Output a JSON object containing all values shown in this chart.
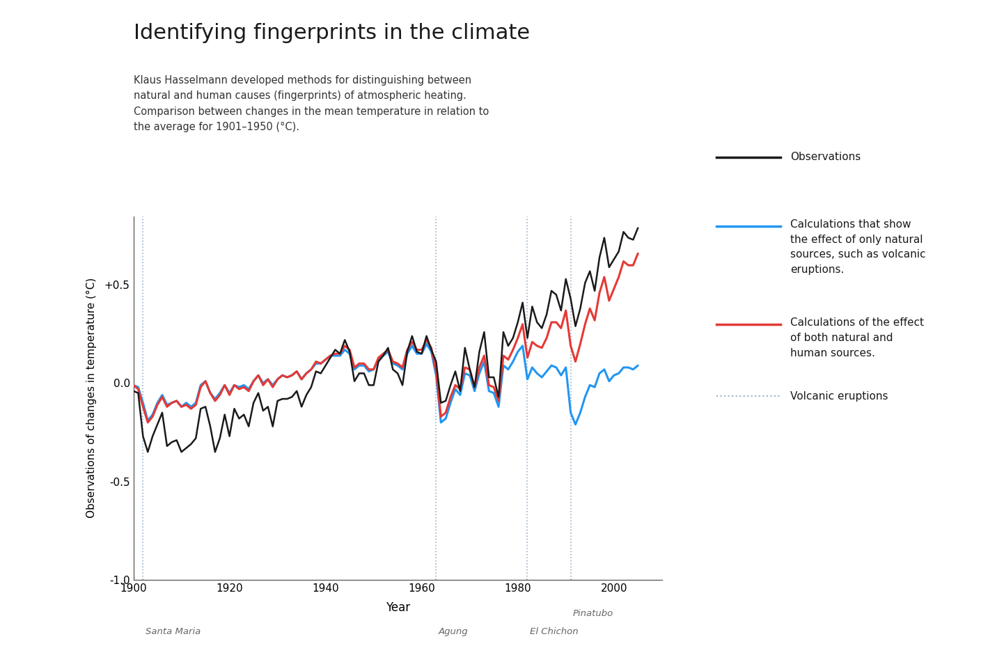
{
  "title": "Identifying fingerprints in the climate",
  "subtitle": "Klaus Hasselmann developed methods for distinguishing between\nnatural and human causes (fingerprints) of atmospheric heating.\nComparison between changes in the mean temperature in relation to\nthe average for 1901–1950 (°C).",
  "ylabel": "Observations of changes in temperature (°C)",
  "xlabel": "Year",
  "ylim": [
    -1.0,
    0.85
  ],
  "xlim": [
    1900,
    2010
  ],
  "yticks": [
    -1.0,
    -0.5,
    0.0,
    0.5
  ],
  "ytick_labels": [
    "-1.0",
    "-0.5",
    "0.0",
    "+0.5"
  ],
  "xticks": [
    1900,
    1920,
    1940,
    1960,
    1980,
    2000
  ],
  "volcanic_years": [
    1902,
    1963,
    1982,
    1991
  ],
  "volcanic_labels": [
    "Santa Maria",
    "Agung",
    "El Chichon",
    "Pinatubo"
  ],
  "obs_color": "#1a1a1a",
  "natural_color": "#2196f3",
  "both_color": "#e53935",
  "volcanic_line_color": "#9ab0c8",
  "bg_color": "#ffffff",
  "obs_lw": 1.8,
  "natural_lw": 2.2,
  "both_lw": 2.2,
  "legend_obs": "Observations",
  "legend_natural": "Calculations that show\nthe effect of only natural\nsources, such as volcanic\neruptions.",
  "legend_both": "Calculations of the effect\nof both natural and\nhuman sources.",
  "legend_volcanic": "Volcanic eruptions",
  "observations_years": [
    1900,
    1901,
    1902,
    1903,
    1904,
    1905,
    1906,
    1907,
    1908,
    1909,
    1910,
    1911,
    1912,
    1913,
    1914,
    1915,
    1916,
    1917,
    1918,
    1919,
    1920,
    1921,
    1922,
    1923,
    1924,
    1925,
    1926,
    1927,
    1928,
    1929,
    1930,
    1931,
    1932,
    1933,
    1934,
    1935,
    1936,
    1937,
    1938,
    1939,
    1940,
    1941,
    1942,
    1943,
    1944,
    1945,
    1946,
    1947,
    1948,
    1949,
    1950,
    1951,
    1952,
    1953,
    1954,
    1955,
    1956,
    1957,
    1958,
    1959,
    1960,
    1961,
    1962,
    1963,
    1964,
    1965,
    1966,
    1967,
    1968,
    1969,
    1970,
    1971,
    1972,
    1973,
    1974,
    1975,
    1976,
    1977,
    1978,
    1979,
    1980,
    1981,
    1982,
    1983,
    1984,
    1985,
    1986,
    1987,
    1988,
    1989,
    1990,
    1991,
    1992,
    1993,
    1994,
    1995,
    1996,
    1997,
    1998,
    1999,
    2000,
    2001,
    2002,
    2003,
    2004,
    2005
  ],
  "observations_vals": [
    -0.04,
    -0.05,
    -0.27,
    -0.35,
    -0.27,
    -0.21,
    -0.15,
    -0.32,
    -0.3,
    -0.29,
    -0.35,
    -0.33,
    -0.31,
    -0.28,
    -0.13,
    -0.12,
    -0.22,
    -0.35,
    -0.28,
    -0.16,
    -0.27,
    -0.13,
    -0.18,
    -0.16,
    -0.22,
    -0.1,
    -0.05,
    -0.14,
    -0.12,
    -0.22,
    -0.09,
    -0.08,
    -0.08,
    -0.07,
    -0.04,
    -0.12,
    -0.06,
    -0.02,
    0.06,
    0.05,
    0.09,
    0.13,
    0.17,
    0.15,
    0.22,
    0.16,
    0.01,
    0.05,
    0.05,
    -0.01,
    -0.01,
    0.11,
    0.14,
    0.18,
    0.07,
    0.05,
    -0.01,
    0.16,
    0.24,
    0.16,
    0.15,
    0.24,
    0.17,
    0.11,
    -0.1,
    -0.09,
    -0.01,
    0.06,
    -0.04,
    0.18,
    0.07,
    -0.02,
    0.16,
    0.26,
    0.03,
    0.03,
    -0.07,
    0.26,
    0.19,
    0.23,
    0.31,
    0.41,
    0.23,
    0.39,
    0.31,
    0.28,
    0.35,
    0.47,
    0.45,
    0.37,
    0.53,
    0.43,
    0.29,
    0.38,
    0.51,
    0.57,
    0.47,
    0.64,
    0.74,
    0.59,
    0.63,
    0.67,
    0.77,
    0.74,
    0.73,
    0.79
  ],
  "natural_years": [
    1900,
    1901,
    1902,
    1903,
    1904,
    1905,
    1906,
    1907,
    1908,
    1909,
    1910,
    1911,
    1912,
    1913,
    1914,
    1915,
    1916,
    1917,
    1918,
    1919,
    1920,
    1921,
    1922,
    1923,
    1924,
    1925,
    1926,
    1927,
    1928,
    1929,
    1930,
    1931,
    1932,
    1933,
    1934,
    1935,
    1936,
    1937,
    1938,
    1939,
    1940,
    1941,
    1942,
    1943,
    1944,
    1945,
    1946,
    1947,
    1948,
    1949,
    1950,
    1951,
    1952,
    1953,
    1954,
    1955,
    1956,
    1957,
    1958,
    1959,
    1960,
    1961,
    1962,
    1963,
    1964,
    1965,
    1966,
    1967,
    1968,
    1969,
    1970,
    1971,
    1972,
    1973,
    1974,
    1975,
    1976,
    1977,
    1978,
    1979,
    1980,
    1981,
    1982,
    1983,
    1984,
    1985,
    1986,
    1987,
    1988,
    1989,
    1990,
    1991,
    1992,
    1993,
    1994,
    1995,
    1996,
    1997,
    1998,
    1999,
    2000,
    2001,
    2002,
    2003,
    2004,
    2005
  ],
  "natural_vals": [
    -0.01,
    -0.02,
    -0.1,
    -0.19,
    -0.16,
    -0.1,
    -0.06,
    -0.11,
    -0.1,
    -0.09,
    -0.12,
    -0.1,
    -0.12,
    -0.1,
    -0.01,
    0.01,
    -0.05,
    -0.08,
    -0.05,
    -0.01,
    -0.05,
    -0.01,
    -0.02,
    -0.01,
    -0.03,
    0.01,
    0.04,
    0.0,
    0.02,
    -0.01,
    0.02,
    0.04,
    0.03,
    0.04,
    0.06,
    0.02,
    0.05,
    0.07,
    0.1,
    0.1,
    0.12,
    0.14,
    0.14,
    0.14,
    0.17,
    0.15,
    0.07,
    0.09,
    0.09,
    0.06,
    0.07,
    0.12,
    0.14,
    0.16,
    0.1,
    0.09,
    0.07,
    0.15,
    0.19,
    0.15,
    0.15,
    0.2,
    0.16,
    0.04,
    -0.2,
    -0.18,
    -0.1,
    -0.03,
    -0.06,
    0.05,
    0.04,
    -0.04,
    0.05,
    0.11,
    -0.04,
    -0.05,
    -0.12,
    0.09,
    0.07,
    0.11,
    0.16,
    0.19,
    0.02,
    0.08,
    0.05,
    0.03,
    0.06,
    0.09,
    0.08,
    0.04,
    0.08,
    -0.15,
    -0.21,
    -0.15,
    -0.07,
    -0.01,
    -0.02,
    0.05,
    0.07,
    0.01,
    0.04,
    0.05,
    0.08,
    0.08,
    0.07,
    0.09
  ],
  "both_years": [
    1900,
    1901,
    1902,
    1903,
    1904,
    1905,
    1906,
    1907,
    1908,
    1909,
    1910,
    1911,
    1912,
    1913,
    1914,
    1915,
    1916,
    1917,
    1918,
    1919,
    1920,
    1921,
    1922,
    1923,
    1924,
    1925,
    1926,
    1927,
    1928,
    1929,
    1930,
    1931,
    1932,
    1933,
    1934,
    1935,
    1936,
    1937,
    1938,
    1939,
    1940,
    1941,
    1942,
    1943,
    1944,
    1945,
    1946,
    1947,
    1948,
    1949,
    1950,
    1951,
    1952,
    1953,
    1954,
    1955,
    1956,
    1957,
    1958,
    1959,
    1960,
    1961,
    1962,
    1963,
    1964,
    1965,
    1966,
    1967,
    1968,
    1969,
    1970,
    1971,
    1972,
    1973,
    1974,
    1975,
    1976,
    1977,
    1978,
    1979,
    1980,
    1981,
    1982,
    1983,
    1984,
    1985,
    1986,
    1987,
    1988,
    1989,
    1990,
    1991,
    1992,
    1993,
    1994,
    1995,
    1996,
    1997,
    1998,
    1999,
    2000,
    2001,
    2002,
    2003,
    2004,
    2005
  ],
  "both_vals": [
    -0.01,
    -0.03,
    -0.12,
    -0.2,
    -0.17,
    -0.11,
    -0.07,
    -0.12,
    -0.1,
    -0.09,
    -0.12,
    -0.11,
    -0.13,
    -0.11,
    -0.02,
    0.01,
    -0.05,
    -0.09,
    -0.06,
    -0.01,
    -0.06,
    -0.01,
    -0.03,
    -0.02,
    -0.04,
    0.01,
    0.04,
    -0.01,
    0.02,
    -0.02,
    0.02,
    0.04,
    0.03,
    0.04,
    0.06,
    0.02,
    0.05,
    0.07,
    0.11,
    0.1,
    0.12,
    0.14,
    0.15,
    0.15,
    0.19,
    0.17,
    0.08,
    0.1,
    0.1,
    0.07,
    0.07,
    0.13,
    0.15,
    0.17,
    0.11,
    0.1,
    0.08,
    0.17,
    0.21,
    0.17,
    0.17,
    0.22,
    0.18,
    0.06,
    -0.17,
    -0.15,
    -0.07,
    -0.01,
    -0.03,
    0.08,
    0.07,
    -0.02,
    0.08,
    0.14,
    -0.01,
    -0.02,
    -0.09,
    0.14,
    0.12,
    0.17,
    0.23,
    0.3,
    0.13,
    0.21,
    0.19,
    0.18,
    0.23,
    0.31,
    0.31,
    0.28,
    0.37,
    0.19,
    0.11,
    0.2,
    0.3,
    0.38,
    0.32,
    0.46,
    0.54,
    0.42,
    0.48,
    0.54,
    0.62,
    0.6,
    0.6,
    0.66
  ]
}
